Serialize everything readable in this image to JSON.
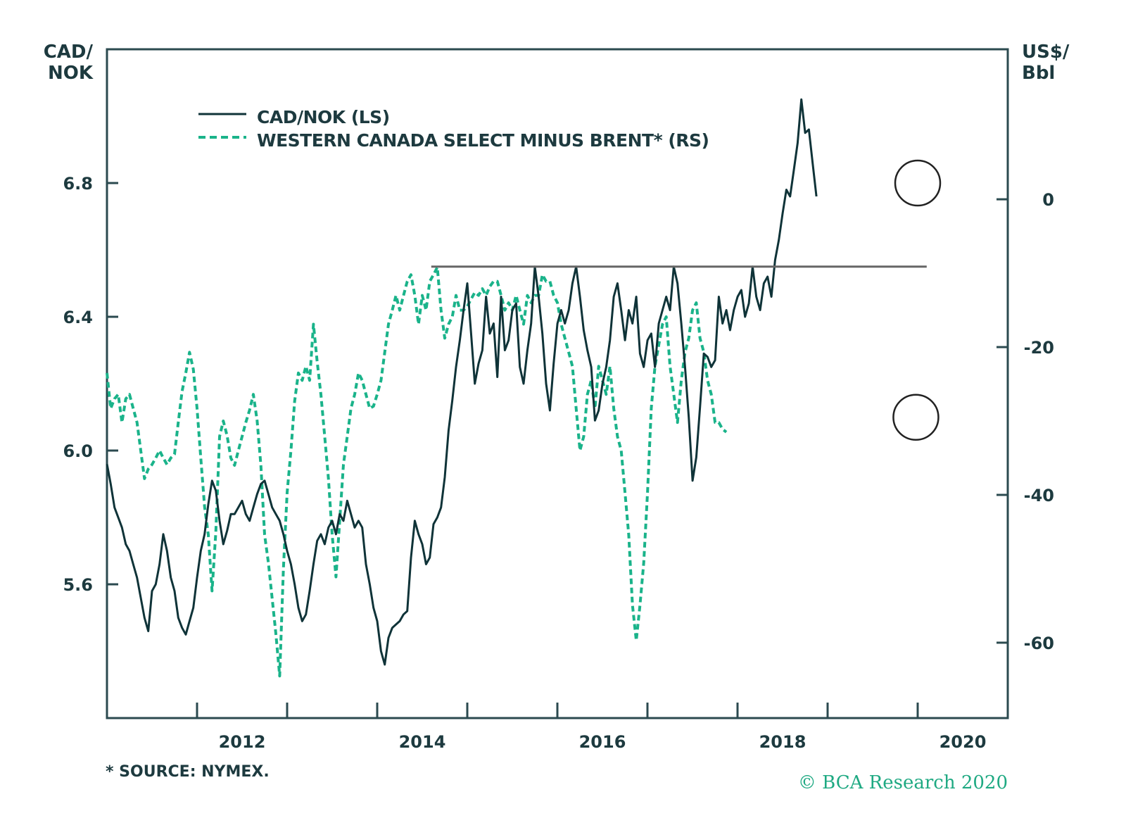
{
  "colors": {
    "primary": "#0f3338",
    "secondary": "#1ab38a",
    "axis": "#2b4a4f",
    "reference": "#666666",
    "annotation": "#222222",
    "copyright": "#1ea982"
  },
  "chart_data": {
    "type": "line",
    "title": "",
    "left_axis": {
      "label_line1": "CAD/",
      "label_line2": "NOK",
      "range": [
        5.2,
        7.2
      ],
      "ticks": [
        5.6,
        6.0,
        6.4,
        6.8
      ],
      "tick_labels": [
        "5.6",
        "6.0",
        "6.4",
        "6.8"
      ]
    },
    "right_axis": {
      "label_line1": "US$/",
      "label_line2": "Bbl",
      "range": [
        -70.2,
        20.3
      ],
      "ticks": [
        -60,
        -40,
        -20,
        0
      ],
      "tick_labels": [
        "-60",
        "-40",
        "-20",
        "0"
      ]
    },
    "x_axis": {
      "range": [
        2011.0,
        2021.0
      ],
      "ticks": [
        2012,
        2013,
        2014,
        2015,
        2016,
        2017,
        2018,
        2019,
        2020
      ],
      "labels": [
        {
          "text": "2012",
          "at": 2012.5
        },
        {
          "text": "2014",
          "at": 2014.5
        },
        {
          "text": "2016",
          "at": 2016.5
        },
        {
          "text": "2018",
          "at": 2018.5
        },
        {
          "text": "2020",
          "at": 2020.5
        }
      ]
    },
    "legend": {
      "placement": "top-left",
      "items": [
        {
          "label": "CAD/NOK (LS)",
          "style": "solid"
        },
        {
          "label": "WESTERN CANADA SELECT MINUS BRENT* (RS)",
          "style": "dashed"
        }
      ]
    },
    "reference_line": {
      "value": 6.55,
      "axis": "left",
      "x_start": 2014.6,
      "x_end": 2020.1
    },
    "annotations": [
      {
        "type": "circle",
        "axis": "left",
        "x": 2020.0,
        "y": 6.8
      },
      {
        "type": "circle",
        "axis": "right",
        "x": 2019.98,
        "y": -29.5
      }
    ],
    "series": [
      {
        "name": "CAD/NOK (LS)",
        "axis": "left",
        "x_start": 2011.0,
        "x_step": 0.04167,
        "values": [
          5.96,
          5.9,
          5.83,
          5.8,
          5.77,
          5.72,
          5.7,
          5.66,
          5.62,
          5.56,
          5.5,
          5.46,
          5.58,
          5.6,
          5.66,
          5.75,
          5.7,
          5.62,
          5.58,
          5.5,
          5.47,
          5.45,
          5.49,
          5.53,
          5.62,
          5.7,
          5.75,
          5.84,
          5.91,
          5.88,
          5.79,
          5.72,
          5.76,
          5.81,
          5.81,
          5.83,
          5.85,
          5.81,
          5.79,
          5.83,
          5.87,
          5.9,
          5.91,
          5.87,
          5.83,
          5.81,
          5.79,
          5.75,
          5.7,
          5.66,
          5.6,
          5.53,
          5.49,
          5.51,
          5.58,
          5.66,
          5.73,
          5.75,
          5.72,
          5.77,
          5.79,
          5.75,
          5.81,
          5.79,
          5.85,
          5.81,
          5.77,
          5.79,
          5.77,
          5.66,
          5.6,
          5.53,
          5.49,
          5.4,
          5.36,
          5.44,
          5.47,
          5.48,
          5.49,
          5.51,
          5.52,
          5.68,
          5.79,
          5.75,
          5.72,
          5.66,
          5.68,
          5.78,
          5.8,
          5.83,
          5.92,
          6.06,
          6.15,
          6.25,
          6.33,
          6.42,
          6.5,
          6.35,
          6.2,
          6.26,
          6.3,
          6.46,
          6.35,
          6.38,
          6.22,
          6.46,
          6.3,
          6.33,
          6.42,
          6.44,
          6.25,
          6.2,
          6.3,
          6.38,
          6.55,
          6.46,
          6.35,
          6.2,
          6.12,
          6.26,
          6.38,
          6.42,
          6.38,
          6.42,
          6.5,
          6.55,
          6.46,
          6.36,
          6.3,
          6.25,
          6.09,
          6.12,
          6.2,
          6.25,
          6.33,
          6.46,
          6.5,
          6.42,
          6.33,
          6.42,
          6.38,
          6.46,
          6.29,
          6.25,
          6.33,
          6.35,
          6.25,
          6.38,
          6.42,
          6.46,
          6.42,
          6.55,
          6.5,
          6.38,
          6.25,
          6.1,
          5.91,
          5.98,
          6.13,
          6.29,
          6.28,
          6.25,
          6.27,
          6.46,
          6.38,
          6.42,
          6.36,
          6.42,
          6.46,
          6.48,
          6.4,
          6.44,
          6.55,
          6.46,
          6.42,
          6.5,
          6.52,
          6.46,
          6.57,
          6.63,
          6.71,
          6.78,
          6.76,
          6.84,
          6.92,
          7.05,
          6.95,
          6.96,
          6.86,
          6.76
        ],
        "note": "values sampled ~every half-month from Jan 2011 to Jan 2020"
      },
      {
        "name": "WESTERN CANADA SELECT MINUS BRENT* (RS)",
        "axis": "right",
        "x_start": 2011.0,
        "x_step": 0.04167,
        "values": [
          -23.5,
          -28.3,
          -27.0,
          -26.4,
          -30.2,
          -27.0,
          -26.4,
          -28.3,
          -30.2,
          -34.0,
          -37.8,
          -36.5,
          -35.9,
          -35.0,
          -34.0,
          -35.0,
          -35.9,
          -35.0,
          -34.5,
          -30.2,
          -26.0,
          -23.5,
          -20.7,
          -23.0,
          -28.3,
          -35.0,
          -41.6,
          -45.4,
          -53.0,
          -45.0,
          -32.1,
          -30.0,
          -32.0,
          -35.0,
          -36.0,
          -34.0,
          -32.1,
          -30.2,
          -28.5,
          -26.4,
          -30.0,
          -36.0,
          -45.4,
          -49.2,
          -54.0,
          -58.8,
          -64.5,
          -50.0,
          -39.7,
          -34.0,
          -27.3,
          -23.5,
          -24.5,
          -22.6,
          -24.5,
          -16.9,
          -22.0,
          -26.4,
          -32.1,
          -37.8,
          -45.4,
          -51.1,
          -43.5,
          -35.9,
          -32.1,
          -28.3,
          -26.4,
          -23.5,
          -24.5,
          -26.4,
          -28.3,
          -28.0,
          -26.4,
          -24.5,
          -20.7,
          -16.9,
          -15.0,
          -13.0,
          -15.0,
          -13.0,
          -11.1,
          -10.2,
          -13.0,
          -16.9,
          -13.0,
          -15.0,
          -11.1,
          -10.2,
          -9.2,
          -15.0,
          -18.8,
          -16.9,
          -15.9,
          -13.0,
          -15.0,
          -15.0,
          -14.5,
          -13.5,
          -12.6,
          -13.0,
          -12.1,
          -13.0,
          -11.8,
          -11.1,
          -11.1,
          -13.0,
          -15.0,
          -14.0,
          -15.0,
          -13.0,
          -15.0,
          -16.9,
          -13.0,
          -14.0,
          -13.0,
          -13.0,
          -10.2,
          -11.1,
          -11.1,
          -13.0,
          -14.0,
          -16.9,
          -18.8,
          -20.7,
          -22.6,
          -28.3,
          -34.0,
          -32.1,
          -26.4,
          -24.5,
          -28.3,
          -22.6,
          -24.5,
          -26.4,
          -22.6,
          -28.3,
          -32.1,
          -34.0,
          -39.7,
          -45.4,
          -54.9,
          -59.7,
          -54.9,
          -49.2,
          -39.7,
          -28.3,
          -22.6,
          -19.7,
          -16.9,
          -15.9,
          -22.6,
          -26.4,
          -30.2,
          -24.5,
          -20.7,
          -18.8,
          -15.0,
          -14.0,
          -18.8,
          -20.7,
          -24.5,
          -26.4,
          -30.2,
          -30.2,
          -31.1,
          -31.5
        ],
        "note": "values sampled ~every half-month from Jan 2011 to Jan 2020"
      }
    ]
  },
  "footer": {
    "source": "* SOURCE: NYMEX.",
    "copyright": "© BCA Research 2020"
  }
}
